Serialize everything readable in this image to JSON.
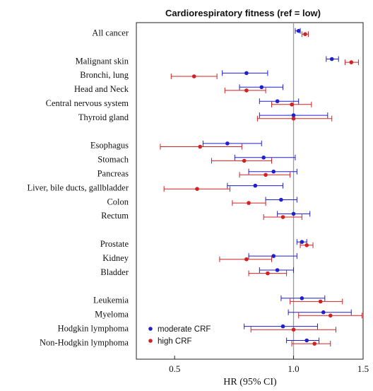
{
  "chart_data": {
    "type": "forest",
    "title": "Cardiorespiratory fitness (ref = low)",
    "xlabel": "HR (95% CI)",
    "x_scale": "log",
    "xlim": [
      0.4,
      1.5
    ],
    "xticks": [
      0.5,
      1.0,
      1.5
    ],
    "xtick_labels": [
      "0.5",
      "1.0",
      "1.5"
    ],
    "reference_line": 1.0,
    "legend_position": "bottom-left",
    "series": [
      {
        "name": "moderate CRF",
        "color": "#1f1fd0"
      },
      {
        "name": "high CRF",
        "color": "#d42020"
      }
    ],
    "rows": [
      {
        "label": "All cancer",
        "moderate": [
          1.03,
          1.01,
          1.04
        ],
        "high": [
          1.07,
          1.05,
          1.09
        ]
      },
      {
        "label": "",
        "gap": true
      },
      {
        "label": "Malignant skin",
        "moderate": [
          1.25,
          1.21,
          1.3
        ],
        "high": [
          1.4,
          1.35,
          1.46
        ]
      },
      {
        "label": "Bronchi, lung",
        "moderate": [
          0.76,
          0.66,
          0.86
        ],
        "high": [
          0.56,
          0.49,
          0.64
        ]
      },
      {
        "label": "Head and Neck",
        "moderate": [
          0.83,
          0.73,
          0.94
        ],
        "high": [
          0.76,
          0.67,
          0.85
        ]
      },
      {
        "label": "Central nervous system",
        "moderate": [
          0.91,
          0.82,
          1.03
        ],
        "high": [
          0.99,
          0.88,
          1.11
        ]
      },
      {
        "label": "Thyroid gland",
        "moderate": [
          1.0,
          0.82,
          1.22
        ],
        "high": [
          1.0,
          0.81,
          1.25
        ]
      },
      {
        "label": "",
        "gap": true
      },
      {
        "label": "Esophagus",
        "moderate": [
          0.68,
          0.59,
          0.83
        ],
        "high": [
          0.58,
          0.46,
          0.74
        ]
      },
      {
        "label": "Stomach",
        "moderate": [
          0.84,
          0.71,
          1.01
        ],
        "high": [
          0.75,
          0.62,
          0.88
        ]
      },
      {
        "label": "Pancreas",
        "moderate": [
          0.89,
          0.77,
          1.02
        ],
        "high": [
          0.85,
          0.73,
          0.98
        ]
      },
      {
        "label": "Liver, bile ducts, gallbladder",
        "moderate": [
          0.8,
          0.68,
          0.94
        ],
        "high": [
          0.57,
          0.47,
          0.69
        ]
      },
      {
        "label": "Colon",
        "moderate": [
          0.93,
          0.85,
          1.02
        ],
        "high": [
          0.77,
          0.7,
          0.85
        ]
      },
      {
        "label": "Rectum",
        "moderate": [
          1.0,
          0.91,
          1.1
        ],
        "high": [
          0.94,
          0.84,
          1.05
        ]
      },
      {
        "label": "",
        "gap": true
      },
      {
        "label": "Prostate",
        "moderate": [
          1.05,
          1.02,
          1.08
        ],
        "high": [
          1.08,
          1.04,
          1.12
        ]
      },
      {
        "label": "Kidney",
        "moderate": [
          0.89,
          0.77,
          1.02
        ],
        "high": [
          0.76,
          0.65,
          0.88
        ]
      },
      {
        "label": "Bladder",
        "moderate": [
          0.91,
          0.82,
          1.0
        ],
        "high": [
          0.86,
          0.77,
          0.96
        ]
      },
      {
        "label": "",
        "gap": true
      },
      {
        "label": "Leukemia",
        "moderate": [
          1.05,
          0.93,
          1.2
        ],
        "high": [
          1.17,
          0.98,
          1.33
        ]
      },
      {
        "label": "Myeloma",
        "moderate": [
          1.19,
          0.97,
          1.4
        ],
        "high": [
          1.24,
          1.03,
          1.49
        ]
      },
      {
        "label": "Hodgkin lymphoma",
        "moderate": [
          0.94,
          0.75,
          1.15
        ],
        "high": [
          1.0,
          0.78,
          1.28
        ]
      },
      {
        "label": "Non-Hodgkin lymphoma",
        "moderate": [
          1.08,
          0.96,
          1.16
        ],
        "high": [
          1.13,
          0.99,
          1.24
        ]
      }
    ]
  }
}
